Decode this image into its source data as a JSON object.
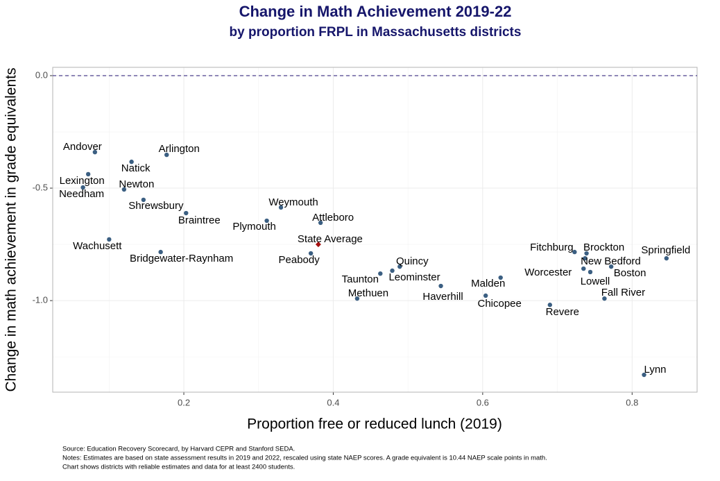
{
  "chart_data": {
    "type": "scatter",
    "title": "Change in Math Achievement 2019-22",
    "subtitle": "by proportion FRPL in Massachusetts districts",
    "x_label": "Proportion free or reduced lunch (2019)",
    "y_label": "Change in math achievement in grade equivalents",
    "labels": [
      "Andover",
      "Arlington",
      "Natick",
      "Lexington",
      "Needham",
      "Newton",
      "Shrewsbury",
      "Braintree",
      "Weymouth",
      "Plymouth",
      "Attleboro",
      "Wachusett",
      "Bridgewater-Raynham",
      "State Average",
      "Peabody",
      "Quincy",
      "Leominster",
      "Taunton",
      "Methuen",
      "Haverhill",
      "Malden",
      "Chicopee",
      "Revere",
      "Fitchburg",
      "Brockton",
      "Worcester",
      "New Bedford",
      "Lowell",
      "Boston",
      "Springfield",
      "Fall River",
      "Lynn"
    ],
    "x": [
      0.081,
      0.177,
      0.13,
      0.072,
      0.065,
      0.12,
      0.146,
      0.203,
      0.33,
      0.311,
      0.383,
      0.1,
      0.169,
      0.38,
      0.37,
      0.489,
      0.479,
      0.463,
      0.432,
      0.544,
      0.624,
      0.604,
      0.69,
      0.723,
      0.739,
      0.735,
      0.737,
      0.744,
      0.772,
      0.846,
      0.763,
      0.816
    ],
    "values": [
      -0.34,
      -0.352,
      -0.383,
      -0.438,
      -0.497,
      -0.506,
      -0.552,
      -0.611,
      -0.586,
      -0.645,
      -0.654,
      -0.728,
      -0.784,
      -0.75,
      -0.79,
      -0.849,
      -0.867,
      -0.88,
      -0.991,
      -0.935,
      -0.898,
      -0.978,
      -1.019,
      -0.784,
      -0.79,
      -0.858,
      -0.812,
      -0.873,
      -0.849,
      -0.812,
      -0.991,
      -1.33
    ],
    "color": "#3b5f82",
    "highlight_index": 13,
    "highlight_color": "#a50f0f",
    "reference_line": 0,
    "xlim": [
      0.0245,
      0.887
    ],
    "ylim": [
      -1.407,
      0.037
    ],
    "xticks": [
      0.2,
      0.4,
      0.6,
      0.8
    ],
    "yticks": [
      {
        "value": 0,
        "label": "0.0"
      },
      {
        "value": -0.5,
        "label": "-0.5"
      },
      {
        "value": -1,
        "label": "-1.0"
      }
    ],
    "grid": true,
    "footnotes": [
      "Source: Education Recovery Scorecard, by Harvard CEPR and Stanford SEDA.",
      "Notes: Estimates are based on state assessment results in 2019 and 2022, rescaled using state NAEP scores. A grade equivalent is 10.44 NAEP scale points in math.",
      "Chart shows districts with reliable estimates and data for at least 2400 students."
    ]
  }
}
